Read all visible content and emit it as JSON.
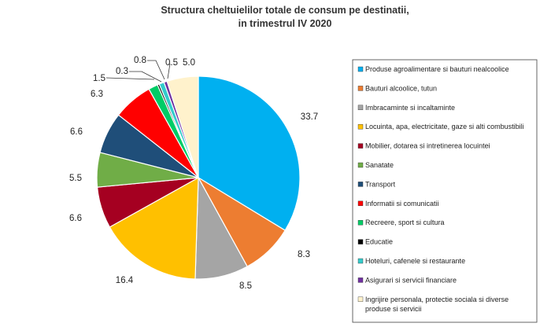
{
  "chart_data": {
    "type": "pie",
    "title_lines": [
      "Structura cheltuielilor totale de consum pe destinatii,",
      "in trimestrul IV 2020"
    ],
    "slices": [
      {
        "label": "Produse agroalimentare si bauturi nealcoolice",
        "value": 33.7,
        "value_label": "33.7",
        "color": "#00b0f0"
      },
      {
        "label": "Bauturi alcoolice, tutun",
        "value": 8.3,
        "value_label": "8.3",
        "color": "#ed7d31"
      },
      {
        "label": "Imbracaminte si incaltaminte",
        "value": 8.5,
        "value_label": "8.5",
        "color": "#a5a5a5"
      },
      {
        "label": "Locuinta, apa, electricitate, gaze si alti combustibili",
        "value": 16.4,
        "value_label": "16.4",
        "color": "#ffc000"
      },
      {
        "label": "Mobilier, dotarea si intretinerea locuintei",
        "value": 6.6,
        "value_label": "6.6",
        "color": "#a50021"
      },
      {
        "label": "Sanatate",
        "value": 5.5,
        "value_label": "5.5",
        "color": "#70ad47"
      },
      {
        "label": "Transport",
        "value": 6.6,
        "value_label": "6.6",
        "color": "#1f4e79"
      },
      {
        "label": "Informatii si comunicatii",
        "value": 6.3,
        "value_label": "6.3",
        "color": "#ff0000"
      },
      {
        "label": "Recreere, sport si cultura",
        "value": 1.5,
        "value_label": "1.5",
        "color": "#00cc66"
      },
      {
        "label": "Educatie",
        "value": 0.3,
        "value_label": "0.3",
        "color": "#000000"
      },
      {
        "label": "Hoteluri, cafenele si restaurante",
        "value": 0.8,
        "value_label": "0.8",
        "color": "#33cccc"
      },
      {
        "label": "Asigurari si servicii financiare",
        "value": 0.5,
        "value_label": "0.5",
        "color": "#7030a0"
      },
      {
        "label": "Ingrijire personala, protectie sociala si diverse produse si servicii",
        "value": 5.0,
        "value_label": "5.0",
        "color": "#fff2cc"
      }
    ],
    "legend_position": "right",
    "legend_text_lines": [
      [
        "Produse agroalimentare si bauturi nealcoolice"
      ],
      [
        "Bauturi alcoolice, tutun"
      ],
      [
        "Imbracaminte si incaltaminte"
      ],
      [
        "Locuinta, apa, electricitate, gaze si alti combustibili"
      ],
      [
        "Mobilier, dotarea si intretinerea locuintei"
      ],
      [
        "Sanatate"
      ],
      [
        "Transport"
      ],
      [
        "Informatii si comunicatii"
      ],
      [
        "Recreere, sport si cultura"
      ],
      [
        "Educatie"
      ],
      [
        "Hoteluri, cafenele si restaurante"
      ],
      [
        "Asigurari si servicii financiare"
      ],
      [
        "Ingrijire personala, protectie sociala si diverse",
        "produse si servicii"
      ]
    ]
  }
}
